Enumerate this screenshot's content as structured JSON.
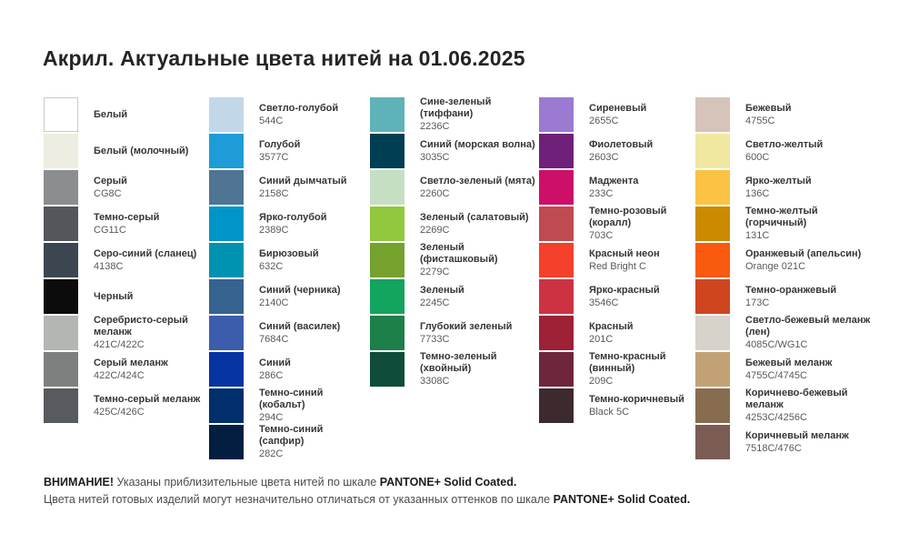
{
  "title": "Акрил. Актуальные цвета нитей на 01.06.2025",
  "columns": [
    {
      "items": [
        {
          "name": "Белый",
          "code": "",
          "hex": "#ffffff",
          "border": true
        },
        {
          "name": "Белый (молочный)",
          "code": "",
          "hex": "#edeee1"
        },
        {
          "name": "Серый",
          "code": "CG8C",
          "hex": "#8b8d8e"
        },
        {
          "name": "Темно-серый",
          "code": "CG11C",
          "hex": "#53565a"
        },
        {
          "name": "Серо-синий (сланец)",
          "code": "4138C",
          "hex": "#3c4650"
        },
        {
          "name": "Черный",
          "code": "",
          "hex": "#0c0c0c"
        },
        {
          "name": "Серебристо-серый меланж",
          "code": "421C/422C",
          "hex": "#b3b6b3"
        },
        {
          "name": "Серый меланж",
          "code": "422C/424C",
          "hex": "#7d807e"
        },
        {
          "name": "Темно-серый меланж",
          "code": "425C/426C",
          "hex": "#575a5e"
        }
      ]
    },
    {
      "items": [
        {
          "name": "Светло-голубой",
          "code": "544C",
          "hex": "#c2d8e9"
        },
        {
          "name": "Голубой",
          "code": "3577C",
          "hex": "#1d9cd8"
        },
        {
          "name": "Синий дымчатый",
          "code": "2158C",
          "hex": "#4f7494"
        },
        {
          "name": "Ярко-голубой",
          "code": "2389C",
          "hex": "#0095c8"
        },
        {
          "name": "Бирюзовый",
          "code": "632C",
          "hex": "#0092b0"
        },
        {
          "name": "Синий (черника)",
          "code": "2140C",
          "hex": "#35628f"
        },
        {
          "name": "Синий (василек)",
          "code": "7684C",
          "hex": "#3c5dab"
        },
        {
          "name": "Синий",
          "code": "286C",
          "hex": "#0533a1"
        },
        {
          "name": "Темно-синий (кобальт)",
          "code": "294C",
          "hex": "#002f6c"
        },
        {
          "name": "Темно-синий (сапфир)",
          "code": "282C",
          "hex": "#041e42"
        }
      ]
    },
    {
      "items": [
        {
          "name": "Сине-зеленый (тиффани)",
          "code": "2236C",
          "hex": "#60b2b9"
        },
        {
          "name": "Синий (морская волна)",
          "code": "3035C",
          "hex": "#003e51"
        },
        {
          "name": "Светло-зеленый (мята)",
          "code": "2260C",
          "hex": "#c5dfc3"
        },
        {
          "name": "Зеленый (салатовый)",
          "code": "2269C",
          "hex": "#92c83e"
        },
        {
          "name": "Зеленый (фисташковый)",
          "code": "2279C",
          "hex": "#74a22d"
        },
        {
          "name": "Зеленый",
          "code": "2245C",
          "hex": "#13a45d"
        },
        {
          "name": "Глубокий зеленый",
          "code": "7733C",
          "hex": "#1d8048"
        },
        {
          "name": "Темно-зеленый (хвойный)",
          "code": "3308C",
          "hex": "#0f4c3a"
        }
      ]
    },
    {
      "items": [
        {
          "name": "Сиреневый",
          "code": "2655C",
          "hex": "#9b7ad1"
        },
        {
          "name": "Фиолетовый",
          "code": "2603C",
          "hex": "#6f2079"
        },
        {
          "name": "Маджента",
          "code": "233C",
          "hex": "#cd0f69"
        },
        {
          "name": "Темно-розовый (коралл)",
          "code": "703C",
          "hex": "#bf4a50"
        },
        {
          "name": "Красный неон",
          "code": "Red Bright C",
          "hex": "#f4402a"
        },
        {
          "name": "Ярко-красный",
          "code": "3546C",
          "hex": "#cd3243"
        },
        {
          "name": "Красный",
          "code": "201C",
          "hex": "#9d2235"
        },
        {
          "name": "Темно-красный (винный)",
          "code": "209C",
          "hex": "#6f263d"
        },
        {
          "name": "Темно-коричневый",
          "code": "Black 5C",
          "hex": "#3c2a2e"
        }
      ]
    },
    {
      "items": [
        {
          "name": "Бежевый",
          "code": "4755C",
          "hex": "#d6c3b9"
        },
        {
          "name": "Светло-желтый",
          "code": "600C",
          "hex": "#f0e7a0"
        },
        {
          "name": "Ярко-желтый",
          "code": "136C",
          "hex": "#fbc343"
        },
        {
          "name": "Темно-желтый (горчичный)",
          "code": "131C",
          "hex": "#cc8a00"
        },
        {
          "name": "Оранжевый (апельсин)",
          "code": "Orange 021C",
          "hex": "#fa5a0f"
        },
        {
          "name": "Темно-оранжевый",
          "code": "173C",
          "hex": "#cf4520"
        },
        {
          "name": "Светло-бежевый меланж (лен)",
          "code": "4085C/WG1C",
          "hex": "#d7d3ca"
        },
        {
          "name": "Бежевый меланж",
          "code": "4755C/4745C",
          "hex": "#c2a274"
        },
        {
          "name": "Коричнево-бежевый меланж",
          "code": "4253C/4256C",
          "hex": "#886c4f"
        },
        {
          "name": "Коричневый меланж",
          "code": "7518C/476C",
          "hex": "#7a5c55"
        }
      ]
    }
  ],
  "footer": {
    "lines": [
      {
        "segments": [
          {
            "text": "ВНИМАНИЕ!",
            "bold": true
          },
          {
            "text": " Указаны приблизительные цвета нитей по шкале ",
            "bold": false
          },
          {
            "text": "PANTONE+ Solid Coated.",
            "bold": true
          }
        ]
      },
      {
        "segments": [
          {
            "text": "Цвета нитей готовых изделий могут незначительно отличаться от указанных оттенков по шкале ",
            "bold": false
          },
          {
            "text": "PANTONE+ Solid Coated.",
            "bold": true
          }
        ]
      }
    ]
  }
}
